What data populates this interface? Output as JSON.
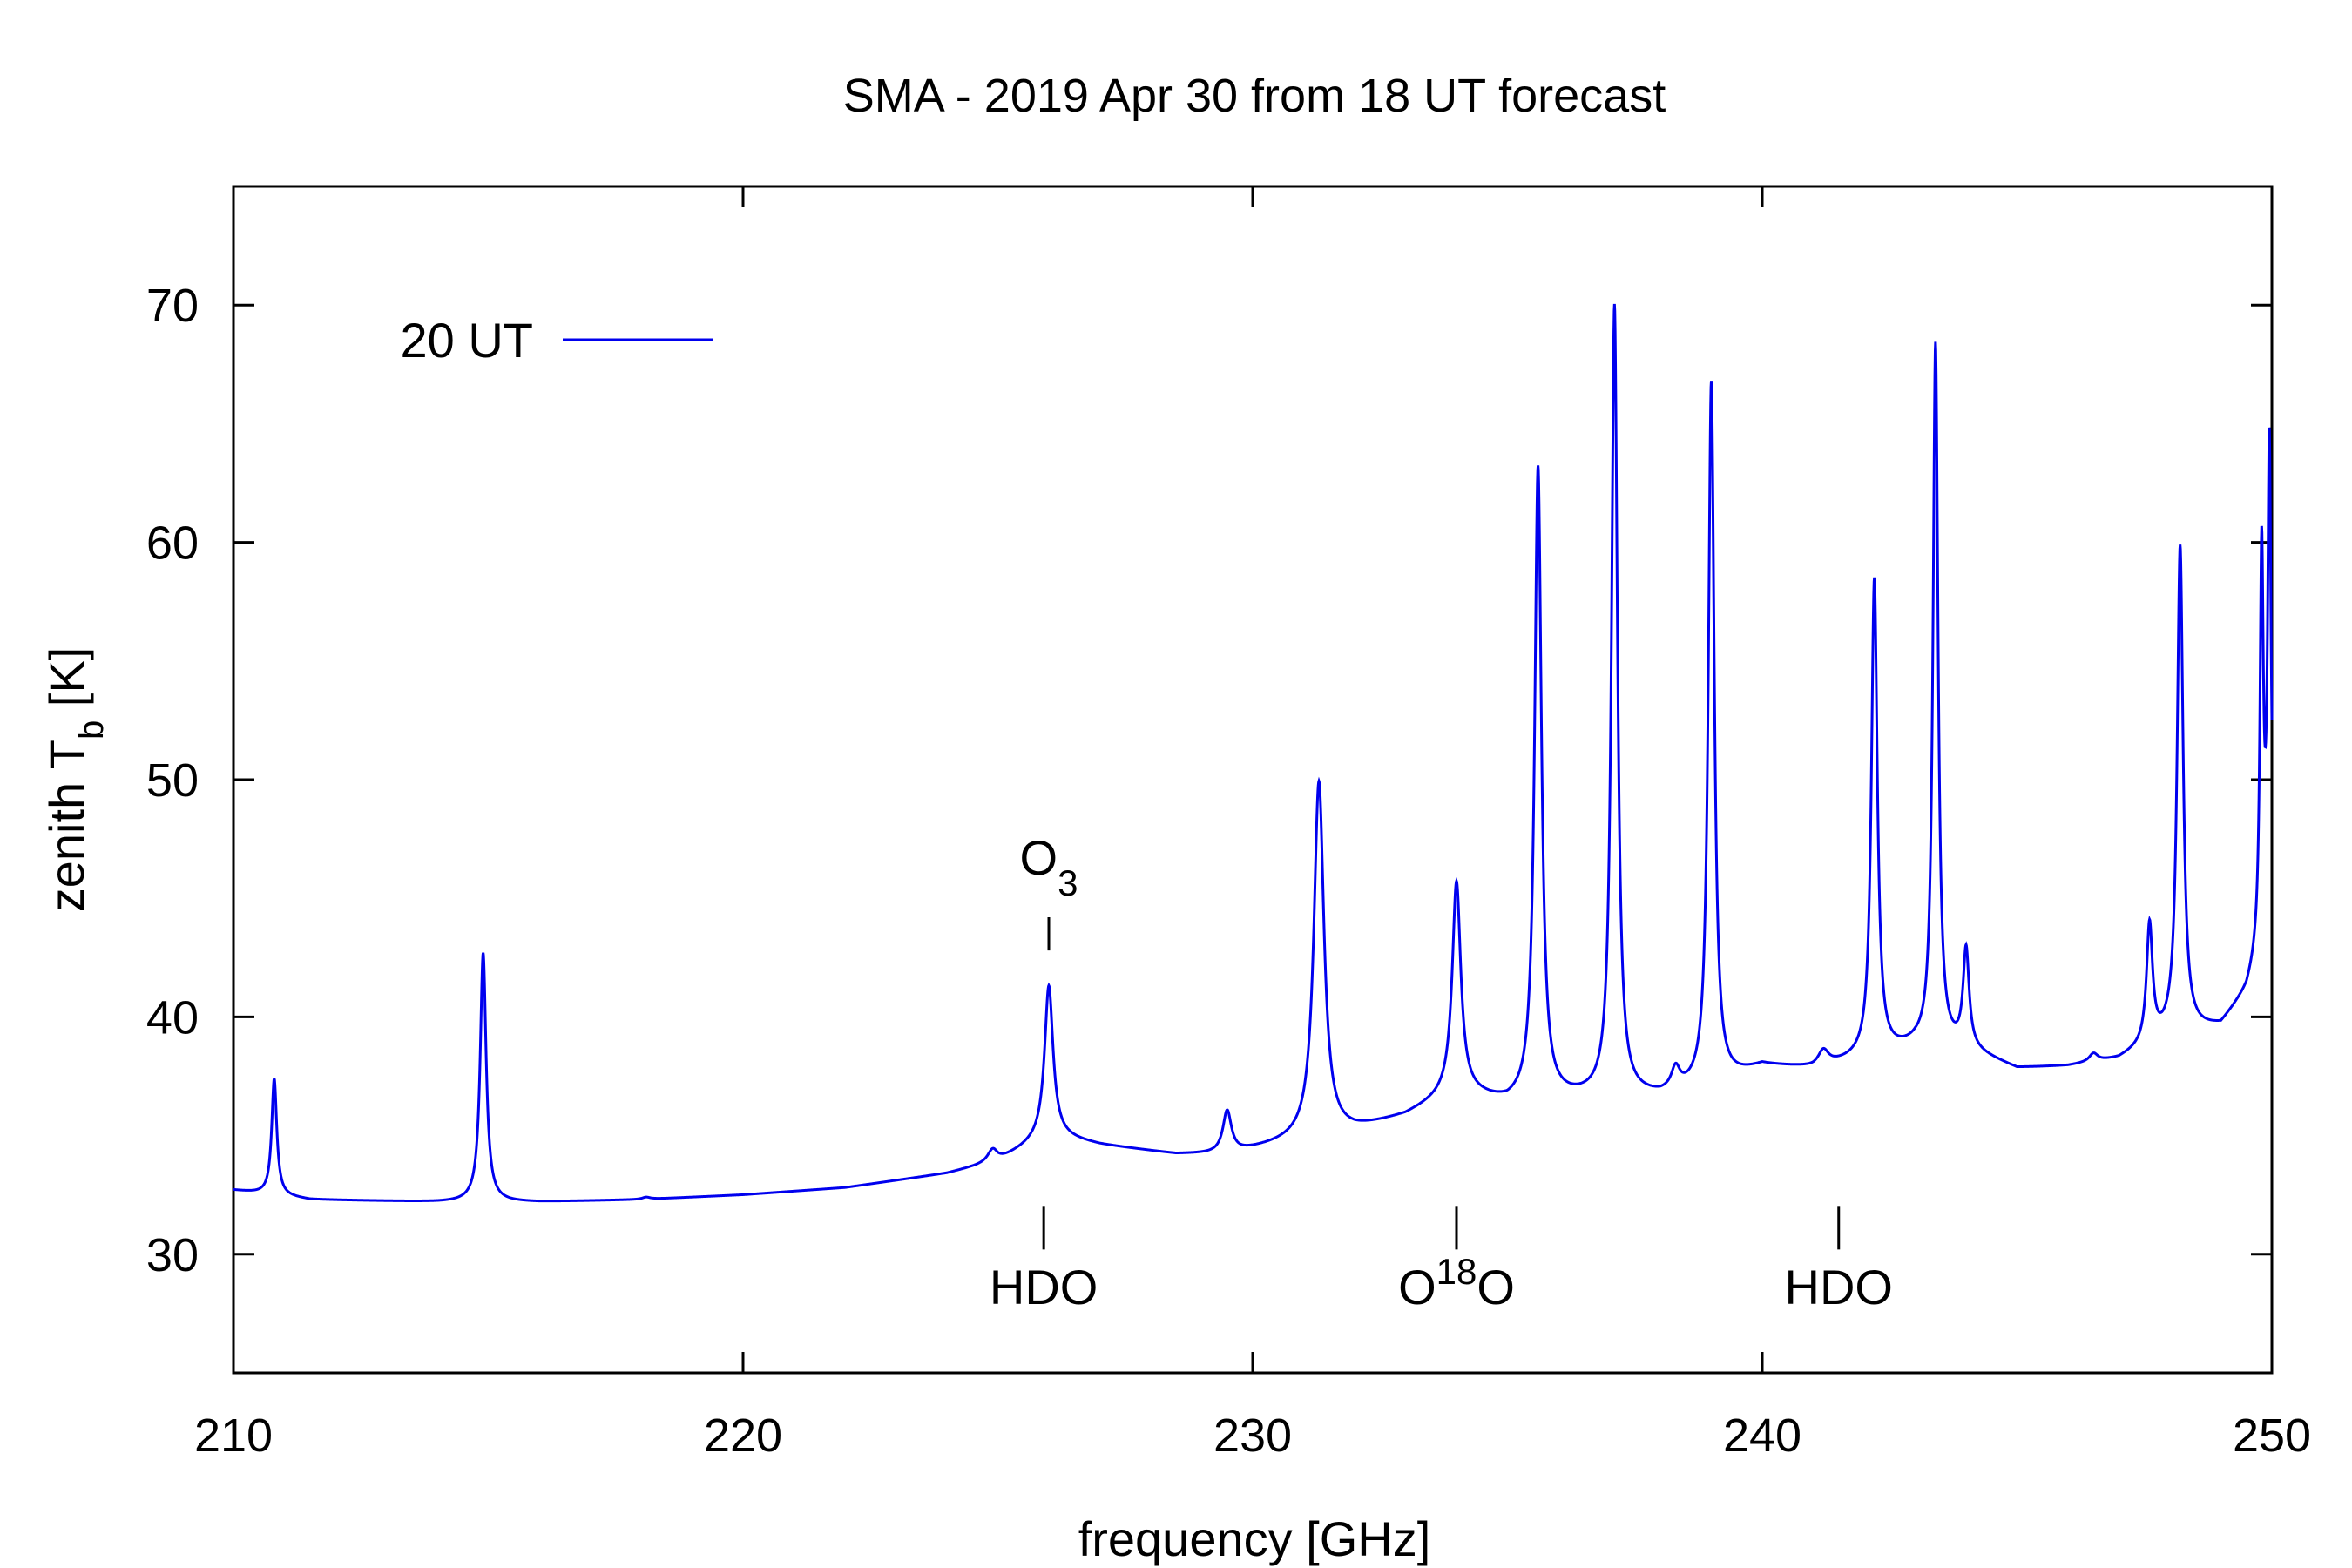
{
  "chart_data": {
    "type": "line",
    "title": "SMA - 2019 Apr 30 from 18 UT forecast",
    "xlabel": "frequency [GHz]",
    "ylabel": {
      "prefix": "zenith T",
      "sub": "b",
      "suffix": " [K]"
    },
    "xlim": [
      210,
      250
    ],
    "ylim": [
      25,
      75
    ],
    "x_ticks": [
      210,
      220,
      230,
      240,
      250
    ],
    "y_ticks": [
      30,
      40,
      50,
      60,
      70
    ],
    "x_tick_labels": [
      "210",
      "220",
      "230",
      "240",
      "250"
    ],
    "y_tick_labels": [
      "30",
      "40",
      "50",
      "60",
      "70"
    ],
    "grid": false,
    "legend_position": "top-left",
    "series": [
      {
        "name": "20 UT",
        "color": "#0000ee",
        "baseline": [
          [
            210.0,
            32.7
          ],
          [
            211.5,
            32.3
          ],
          [
            214.0,
            32.2
          ],
          [
            216.0,
            32.2
          ],
          [
            218.0,
            32.3
          ],
          [
            220.0,
            32.5
          ],
          [
            222.0,
            32.8
          ],
          [
            224.0,
            33.4
          ],
          [
            225.0,
            33.9
          ],
          [
            226.0,
            35.0
          ],
          [
            227.0,
            34.6
          ],
          [
            228.5,
            34.2
          ],
          [
            229.5,
            34.2
          ],
          [
            230.5,
            34.6
          ],
          [
            232.0,
            35.2
          ],
          [
            233.0,
            35.8
          ],
          [
            234.0,
            36.8
          ],
          [
            235.0,
            36.3
          ],
          [
            236.0,
            36.5
          ],
          [
            237.0,
            36.6
          ],
          [
            238.0,
            36.6
          ],
          [
            239.0,
            37.0
          ],
          [
            240.0,
            37.9
          ],
          [
            241.0,
            37.8
          ],
          [
            242.0,
            38.2
          ],
          [
            243.0,
            38.7
          ],
          [
            244.0,
            38.6
          ],
          [
            245.0,
            37.8
          ],
          [
            246.0,
            37.9
          ],
          [
            247.0,
            38.2
          ],
          [
            248.0,
            39.2
          ],
          [
            249.0,
            39.6
          ],
          [
            249.5,
            41.0
          ],
          [
            250.0,
            44.0
          ]
        ],
        "lines": [
          [
            210.8,
            37.4,
            0.06
          ],
          [
            214.9,
            42.7,
            0.07
          ],
          [
            218.1,
            32.4,
            0.1
          ],
          [
            224.9,
            34.4,
            0.12
          ],
          [
            226.0,
            41.3,
            0.1
          ],
          [
            229.5,
            36.0,
            0.1
          ],
          [
            231.3,
            49.9,
            0.12
          ],
          [
            234.0,
            45.6,
            0.1
          ],
          [
            235.6,
            63.1,
            0.08
          ],
          [
            237.1,
            69.9,
            0.07
          ],
          [
            238.3,
            37.6,
            0.1
          ],
          [
            239.0,
            66.7,
            0.07
          ],
          [
            241.2,
            38.5,
            0.12
          ],
          [
            242.2,
            58.4,
            0.07
          ],
          [
            243.4,
            68.3,
            0.06
          ],
          [
            244.0,
            42.7,
            0.07
          ],
          [
            246.5,
            38.4,
            0.1
          ],
          [
            247.6,
            43.8,
            0.07
          ],
          [
            248.2,
            59.8,
            0.07
          ],
          [
            249.8,
            59.3,
            0.04
          ],
          [
            249.95,
            63.8,
            0.04
          ]
        ]
      }
    ],
    "annotations_top": [
      {
        "text": "O",
        "sub": "3",
        "x": 226.0,
        "tick_from": 42.8,
        "tick_to": 44.2,
        "label_y": 46.0
      }
    ],
    "annotations_bottom": [
      {
        "text": "HDO",
        "sub": "",
        "sup": "",
        "tail": "",
        "x": 225.9,
        "tick_from": 30.2,
        "tick_to": 32.0,
        "label_y": 27.9
      },
      {
        "text": "O",
        "sub": "",
        "sup": "18",
        "tail": "O",
        "x": 234.0,
        "tick_from": 30.2,
        "tick_to": 32.0,
        "label_y": 27.9
      },
      {
        "text": "HDO",
        "sub": "",
        "sup": "",
        "tail": "",
        "x": 241.5,
        "tick_from": 30.2,
        "tick_to": 32.0,
        "label_y": 27.9
      }
    ]
  }
}
